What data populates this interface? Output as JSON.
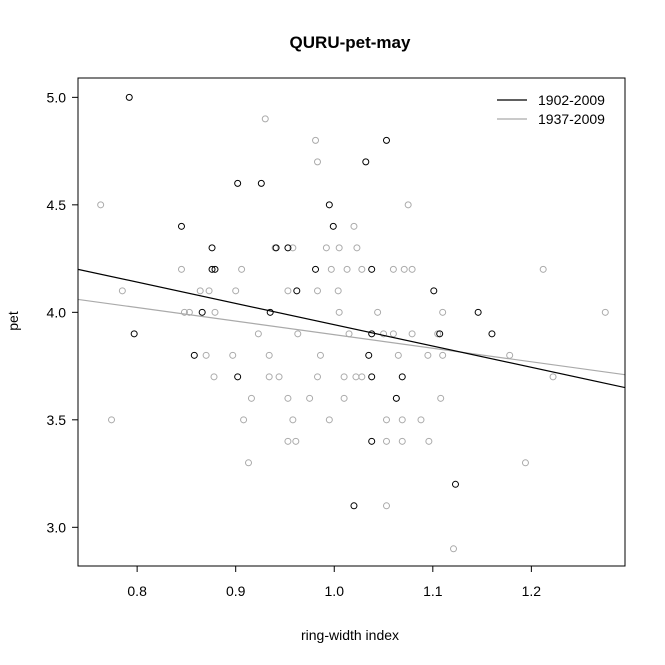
{
  "chart_data": {
    "type": "scatter",
    "title": "QURU-pet-may",
    "xlabel": "ring-width index",
    "ylabel": "pet",
    "xlim": [
      0.74,
      1.295
    ],
    "ylim": [
      2.82,
      5.09
    ],
    "xticks": [
      "0.8",
      "0.9",
      "1.0",
      "1.1",
      "1.2"
    ],
    "yticks": [
      "3.0",
      "3.5",
      "4.0",
      "4.5",
      "5.0"
    ],
    "grid": false,
    "legend": {
      "placement": "top-right",
      "entries": [
        {
          "label": "1902-2009",
          "color": "#000000"
        },
        {
          "label": "1937-2009",
          "color": "#aaaaaa"
        }
      ]
    },
    "series": [
      {
        "name": "1902-2009",
        "color": "#000000",
        "points": [
          [
            0.792,
            5.0
          ],
          [
            0.797,
            3.9
          ],
          [
            0.845,
            4.4
          ],
          [
            0.858,
            3.8
          ],
          [
            0.866,
            4.0
          ],
          [
            0.876,
            4.3
          ],
          [
            0.876,
            4.2
          ],
          [
            0.879,
            4.2
          ],
          [
            0.902,
            4.6
          ],
          [
            0.902,
            3.7
          ],
          [
            0.926,
            4.6
          ],
          [
            0.935,
            4.0
          ],
          [
            0.941,
            4.3
          ],
          [
            0.953,
            4.3
          ],
          [
            0.962,
            4.1
          ],
          [
            0.981,
            4.2
          ],
          [
            0.995,
            4.5
          ],
          [
            0.999,
            4.4
          ],
          [
            1.02,
            3.1
          ],
          [
            1.032,
            4.7
          ],
          [
            1.035,
            3.8
          ],
          [
            1.038,
            4.2
          ],
          [
            1.038,
            3.9
          ],
          [
            1.038,
            3.7
          ],
          [
            1.038,
            3.4
          ],
          [
            1.053,
            4.8
          ],
          [
            1.063,
            3.6
          ],
          [
            1.069,
            3.7
          ],
          [
            1.101,
            4.1
          ],
          [
            1.107,
            3.9
          ],
          [
            1.123,
            3.2
          ],
          [
            1.146,
            4.0
          ],
          [
            1.16,
            3.9
          ]
        ],
        "fit": {
          "x": [
            0.74,
            1.295
          ],
          "y": [
            4.2,
            3.65
          ]
        }
      },
      {
        "name": "1937-2009",
        "color": "#aaaaaa",
        "points": [
          [
            0.763,
            4.5
          ],
          [
            0.774,
            3.5
          ],
          [
            0.785,
            4.1
          ],
          [
            0.845,
            4.2
          ],
          [
            0.848,
            4.0
          ],
          [
            0.853,
            4.0
          ],
          [
            0.864,
            4.1
          ],
          [
            0.87,
            3.8
          ],
          [
            0.873,
            4.1
          ],
          [
            0.878,
            3.7
          ],
          [
            0.879,
            4.0
          ],
          [
            0.897,
            3.8
          ],
          [
            0.9,
            4.1
          ],
          [
            0.906,
            4.2
          ],
          [
            0.908,
            3.5
          ],
          [
            0.913,
            3.3
          ],
          [
            0.916,
            3.6
          ],
          [
            0.923,
            3.9
          ],
          [
            0.93,
            4.9
          ],
          [
            0.934,
            3.8
          ],
          [
            0.934,
            3.7
          ],
          [
            0.94,
            4.3
          ],
          [
            0.944,
            3.7
          ],
          [
            0.953,
            4.1
          ],
          [
            0.953,
            3.6
          ],
          [
            0.953,
            3.4
          ],
          [
            0.958,
            4.3
          ],
          [
            0.958,
            3.5
          ],
          [
            0.961,
            3.4
          ],
          [
            0.963,
            3.9
          ],
          [
            0.975,
            3.6
          ],
          [
            0.981,
            4.8
          ],
          [
            0.983,
            4.7
          ],
          [
            0.983,
            4.1
          ],
          [
            0.983,
            3.7
          ],
          [
            0.986,
            3.8
          ],
          [
            0.992,
            4.3
          ],
          [
            0.995,
            3.5
          ],
          [
            0.997,
            4.2
          ],
          [
            1.004,
            4.1
          ],
          [
            1.005,
            4.3
          ],
          [
            1.005,
            4.0
          ],
          [
            1.01,
            3.6
          ],
          [
            1.01,
            3.7
          ],
          [
            1.013,
            4.2
          ],
          [
            1.015,
            3.9
          ],
          [
            1.02,
            4.4
          ],
          [
            1.022,
            3.7
          ],
          [
            1.023,
            4.3
          ],
          [
            1.028,
            4.2
          ],
          [
            1.028,
            3.7
          ],
          [
            1.044,
            4.0
          ],
          [
            1.05,
            3.9
          ],
          [
            1.053,
            3.5
          ],
          [
            1.053,
            3.4
          ],
          [
            1.053,
            3.1
          ],
          [
            1.06,
            4.2
          ],
          [
            1.06,
            3.9
          ],
          [
            1.063,
            3.6
          ],
          [
            1.065,
            3.8
          ],
          [
            1.069,
            3.4
          ],
          [
            1.069,
            3.5
          ],
          [
            1.071,
            4.2
          ],
          [
            1.075,
            4.5
          ],
          [
            1.079,
            4.2
          ],
          [
            1.079,
            3.9
          ],
          [
            1.088,
            3.5
          ],
          [
            1.095,
            3.8
          ],
          [
            1.096,
            3.4
          ],
          [
            1.105,
            3.9
          ],
          [
            1.108,
            3.6
          ],
          [
            1.11,
            4.0
          ],
          [
            1.11,
            3.8
          ],
          [
            1.121,
            2.9
          ],
          [
            1.178,
            3.8
          ],
          [
            1.194,
            3.3
          ],
          [
            1.212,
            4.2
          ],
          [
            1.222,
            3.7
          ],
          [
            1.275,
            4.0
          ]
        ],
        "fit": {
          "x": [
            0.74,
            1.295
          ],
          "y": [
            4.06,
            3.71
          ]
        }
      }
    ]
  }
}
